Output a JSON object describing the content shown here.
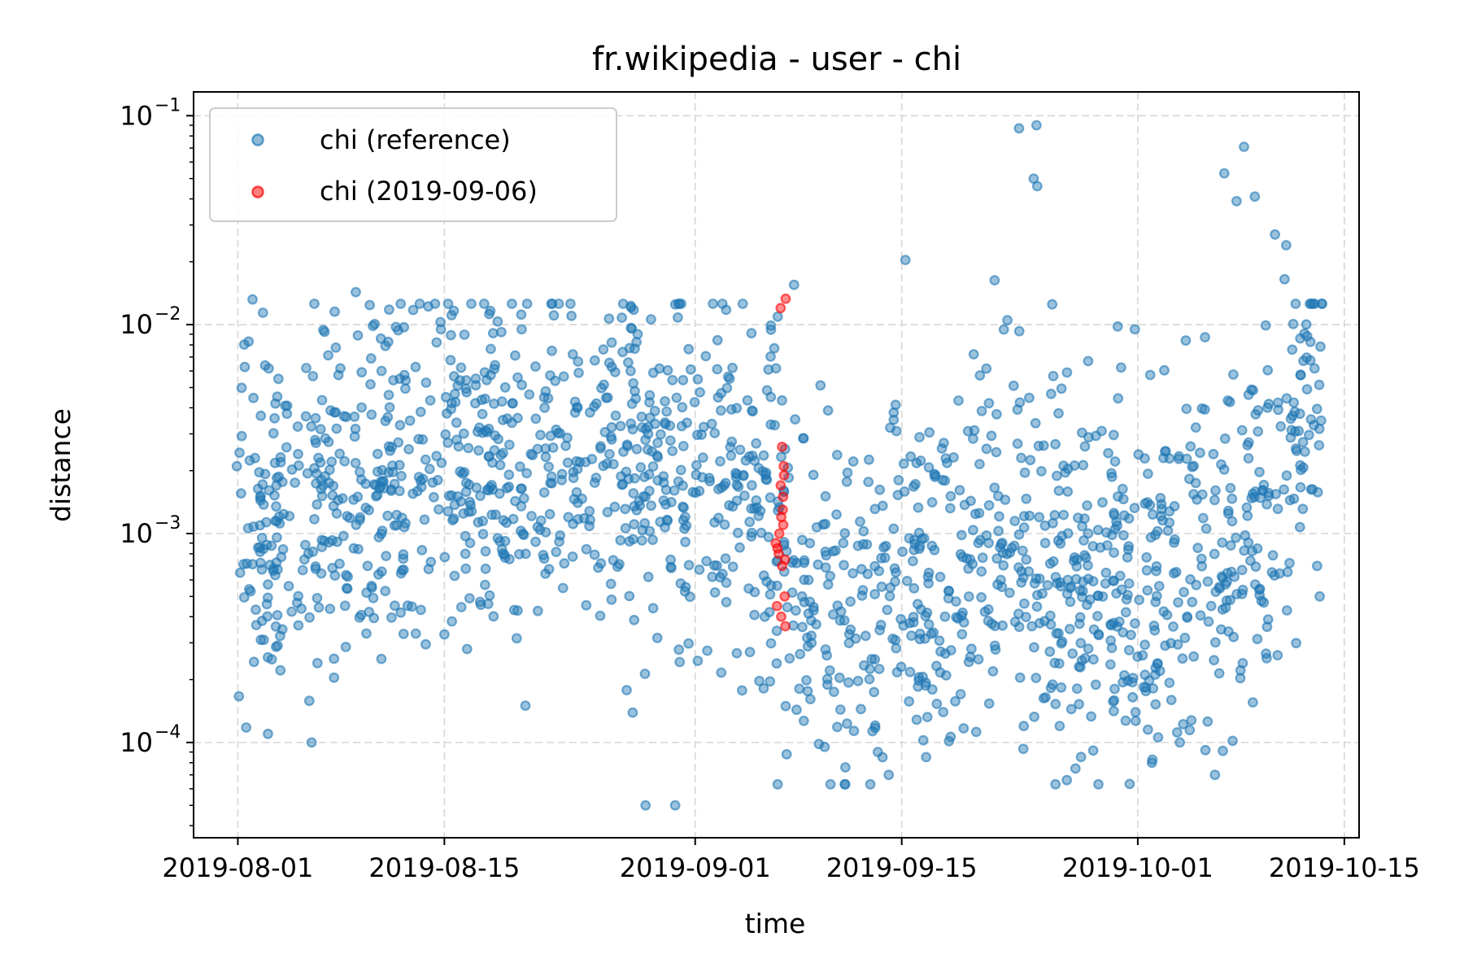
{
  "chart_data": {
    "type": "scatter",
    "title": "fr.wikipedia - user - chi",
    "xlabel": "time",
    "ylabel": "distance",
    "yscale": "log",
    "x_range": [
      "2019-07-29",
      "2019-10-16"
    ],
    "ylim": [
      3.5e-05,
      0.13
    ],
    "grid": true,
    "legend_position": "top-left",
    "x_ticks": [
      "2019-08-01",
      "2019-08-15",
      "2019-09-01",
      "2019-09-15",
      "2019-10-01",
      "2019-10-15"
    ],
    "y_ticks": [
      {
        "value": 0.1,
        "base": "10",
        "exp": "−1"
      },
      {
        "value": 0.01,
        "base": "10",
        "exp": "−2"
      },
      {
        "value": 0.001,
        "base": "10",
        "exp": "−3"
      },
      {
        "value": 0.0001,
        "base": "10",
        "exp": "−4"
      }
    ],
    "series": [
      {
        "name": "chi (reference)",
        "color": "#1f77b4",
        "description": "~1900 points, roughly 24 per day from 2019-08-01 to 2019-10-13; values mostly between 1e-4 and 1e-2; notable highs near 2019-09-24 (up to 0.09) and 2019-10-10 (up to 0.07)",
        "points": [
          [
            "2019-08-01",
            0.0021
          ],
          [
            "2019-08-01",
            0.00065
          ],
          [
            "2019-08-02",
            0.0083
          ],
          [
            "2019-08-02",
            0.0132
          ],
          [
            "2019-08-03",
            0.0114
          ],
          [
            "2019-08-03",
            0.00011
          ],
          [
            "2019-08-04",
            0.0055
          ],
          [
            "2019-08-06",
            0.0062
          ],
          [
            "2019-08-06",
            0.0001
          ],
          [
            "2019-08-09",
            0.0143
          ],
          [
            "2019-08-15",
            0.0095
          ],
          [
            "2019-08-20",
            0.0095
          ],
          [
            "2019-08-27",
            0.0108
          ],
          [
            "2019-08-29",
            0.0106
          ],
          [
            "2019-08-29",
            5e-05
          ],
          [
            "2019-08-31",
            5e-05
          ],
          [
            "2019-09-03",
            0.0047
          ],
          [
            "2019-09-05",
            0.0091
          ],
          [
            "2019-09-08",
            0.0155
          ],
          [
            "2019-09-13",
            9e-05
          ],
          [
            "2019-09-14",
            7e-05
          ],
          [
            "2019-09-15",
            0.0204
          ],
          [
            "2019-09-21",
            0.0163
          ],
          [
            "2019-09-23",
            0.087
          ],
          [
            "2019-09-24",
            0.09
          ],
          [
            "2019-09-24",
            0.046
          ],
          [
            "2019-09-24",
            0.05
          ],
          [
            "2019-09-25",
            0.0125
          ],
          [
            "2019-09-23",
            0.0093
          ],
          [
            "2019-09-30",
            0.0098
          ],
          [
            "2019-10-01",
            0.0095
          ],
          [
            "2019-10-02",
            8e-05
          ],
          [
            "2019-10-04",
            0.0001
          ],
          [
            "2019-10-06",
            7e-05
          ],
          [
            "2019-10-07",
            0.053
          ],
          [
            "2019-10-08",
            0.071
          ],
          [
            "2019-10-08",
            0.039
          ],
          [
            "2019-10-09",
            0.041
          ],
          [
            "2019-10-10",
            0.027
          ],
          [
            "2019-10-11",
            0.024
          ],
          [
            "2019-10-11",
            0.0165
          ],
          [
            "2019-10-12",
            0.0031
          ],
          [
            "2019-10-13",
            0.0033
          ],
          [
            "2019-10-13",
            0.0005
          ],
          [
            "2019-10-13",
            0.0007
          ]
        ]
      },
      {
        "name": "chi (2019-09-06)",
        "color": "#ff0000",
        "description": "~30 points on 2019-09-06, values from 3.6e-4 to 1.3e-2",
        "points": [
          [
            "2019-09-06",
            0.012
          ],
          [
            "2019-09-06",
            0.0133
          ],
          [
            "2019-09-06",
            0.0026
          ],
          [
            "2019-09-06",
            0.0021
          ],
          [
            "2019-09-06",
            0.0019
          ],
          [
            "2019-09-06",
            0.0017
          ],
          [
            "2019-09-06",
            0.0015
          ],
          [
            "2019-09-06",
            0.0013
          ],
          [
            "2019-09-06",
            0.0012
          ],
          [
            "2019-09-06",
            0.0011
          ],
          [
            "2019-09-06",
            0.001
          ],
          [
            "2019-09-06",
            0.0009
          ],
          [
            "2019-09-06",
            0.00085
          ],
          [
            "2019-09-06",
            0.0008
          ],
          [
            "2019-09-06",
            0.00075
          ],
          [
            "2019-09-06",
            0.0007
          ],
          [
            "2019-09-06",
            0.0005
          ],
          [
            "2019-09-06",
            0.00045
          ],
          [
            "2019-09-06",
            0.0004
          ],
          [
            "2019-09-06",
            0.00036
          ]
        ]
      }
    ]
  }
}
